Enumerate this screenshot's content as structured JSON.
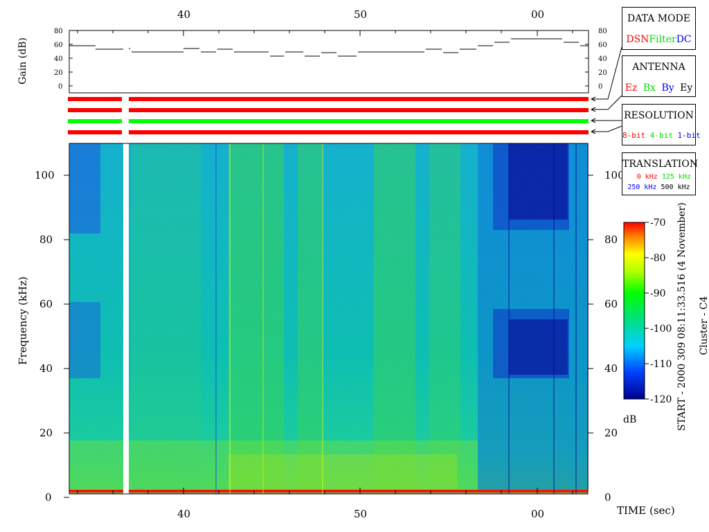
{
  "time_axis": {
    "top_ticks": [
      "40",
      "50",
      "00"
    ],
    "bottom_ticks": [
      "40",
      "50",
      "00"
    ],
    "label": "TIME (sec)"
  },
  "gain_panel": {
    "ylabel": "Gain (dB)",
    "ticks": [
      "80",
      "60",
      "40",
      "20",
      "0"
    ]
  },
  "spectrogram": {
    "ylabel": "Frequency (kHz)",
    "yticks": [
      "100",
      "80",
      "60",
      "40",
      "20",
      "0"
    ]
  },
  "colorbar": {
    "ticks": [
      "-70",
      "-80",
      "-90",
      "-100",
      "-110",
      "-120"
    ],
    "unit": "dB",
    "colors": [
      "#0000a0",
      "#0030ff",
      "#00c8ff",
      "#00e080",
      "#00ff00",
      "#b0ff00",
      "#ffff00",
      "#ff9000",
      "#ff0000"
    ]
  },
  "side_caption": {
    "start": "START - 2000 309 08:11:33.516 (4 November)",
    "spacecraft": "Cluster - C4"
  },
  "legends": {
    "data_mode": {
      "title": "DATA MODE",
      "items": [
        {
          "text": "DSN",
          "color": "#ff0000"
        },
        {
          "text": "Filter",
          "color": "#00e000"
        },
        {
          "text": "DC",
          "color": "#0000ff"
        }
      ]
    },
    "antenna": {
      "title": "ANTENNA",
      "items": [
        {
          "text": "Ez",
          "color": "#ff0000"
        },
        {
          "text": "Bx",
          "color": "#00e000"
        },
        {
          "text": "By",
          "color": "#0000ff"
        },
        {
          "text": "Ey",
          "color": "#000000"
        }
      ]
    },
    "resolution": {
      "title": "RESOLUTION",
      "items": [
        {
          "text": "8-bit",
          "color": "#ff0000"
        },
        {
          "text": "4-bit",
          "color": "#00e000"
        },
        {
          "text": "1-bit",
          "color": "#0000ff"
        }
      ]
    },
    "translation": {
      "title": "TRANSLATION",
      "row1": [
        {
          "text": "0 kHz",
          "color": "#ff0000"
        },
        {
          "text": "125 kHz",
          "color": "#00e000"
        }
      ],
      "row2": [
        {
          "text": "250 kHz",
          "color": "#0000ff"
        },
        {
          "text": "500 kHz",
          "color": "#000000"
        }
      ]
    }
  },
  "status_bars": [
    {
      "name": "data-mode",
      "color": "#ff0000"
    },
    {
      "name": "antenna",
      "color": "#ff0000"
    },
    {
      "name": "resolution",
      "color": "#00ff00"
    },
    {
      "name": "translation",
      "color": "#ff0000"
    }
  ]
}
